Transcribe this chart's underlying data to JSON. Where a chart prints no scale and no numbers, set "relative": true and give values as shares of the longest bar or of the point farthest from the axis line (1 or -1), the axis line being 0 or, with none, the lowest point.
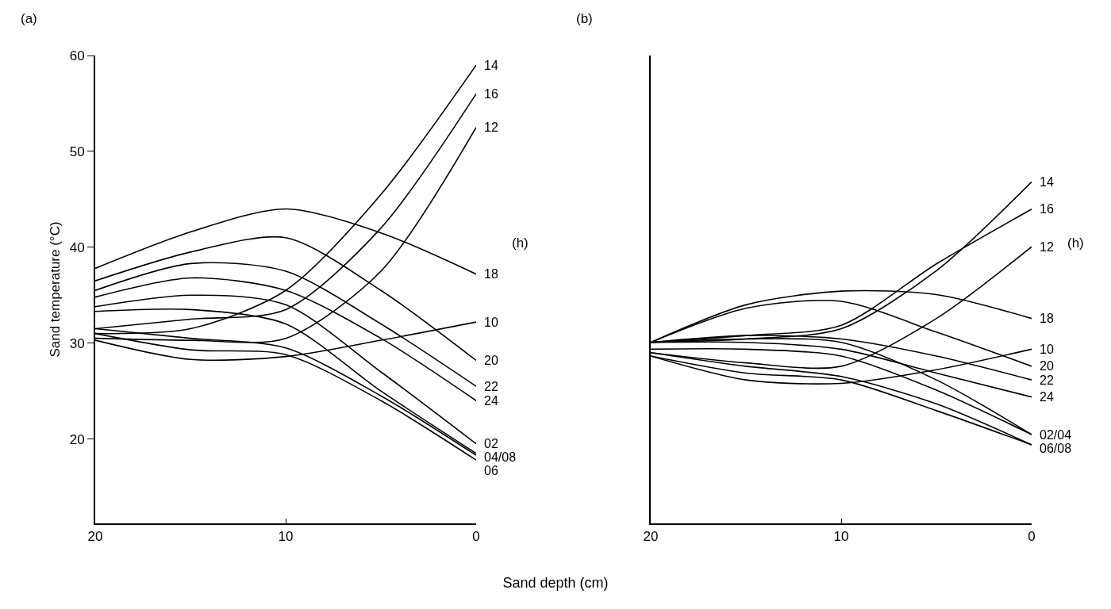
{
  "chart_data": [
    {
      "type": "line",
      "title": "(a)",
      "ylabel": "Sand temperature (°C)",
      "xlabel": "Sand depth (cm)",
      "annotations": [
        "(h)"
      ],
      "x": [
        20,
        15,
        10,
        5,
        0
      ],
      "xlim": [
        20,
        0
      ],
      "xticks": [
        20,
        10,
        0
      ],
      "ylim": [
        11.2,
        60
      ],
      "yticks": [
        20,
        30,
        40,
        50,
        60
      ],
      "legend": false,
      "line_style": "solid",
      "series": [
        {
          "name": "14",
          "color": "#000000",
          "values": [
            31.0,
            31.5,
            35.5,
            45.5,
            59
          ]
        },
        {
          "name": "16",
          "color": "#000000",
          "values": [
            31.5,
            32.5,
            33.5,
            42,
            56
          ]
        },
        {
          "name": "12",
          "color": "#000000",
          "values": [
            30.5,
            30.3,
            30.5,
            37.5,
            52.5
          ]
        },
        {
          "name": "18",
          "color": "#000000",
          "values": [
            37.8,
            41.6,
            44.0,
            41.5,
            37.2
          ]
        },
        {
          "name": "10",
          "color": "#000000",
          "values": [
            30.3,
            28.3,
            28.6,
            30.3,
            32.2
          ]
        },
        {
          "name": "20",
          "color": "#000000",
          "values": [
            36.5,
            39.5,
            41.0,
            35.5,
            28.2
          ]
        },
        {
          "name": "22",
          "color": "#000000",
          "values": [
            35.5,
            38.3,
            37.5,
            32,
            25.5
          ]
        },
        {
          "name": "24",
          "color": "#000000",
          "values": [
            34.8,
            36.8,
            35.5,
            30.5,
            24
          ]
        },
        {
          "name": "02",
          "color": "#000000",
          "values": [
            33.8,
            35.0,
            34,
            27,
            19.5
          ]
        },
        {
          "name": "04/08",
          "color": "#000000",
          "values": [
            33.3,
            33.5,
            32,
            25,
            18.5
          ]
        },
        {
          "color": "#000000",
          "values": [
            31.5,
            30.5,
            29.5,
            24.5,
            18.3
          ]
        },
        {
          "name": "06",
          "color": "#000000",
          "values": [
            31.0,
            29.3,
            28.8,
            24,
            17.8
          ]
        }
      ]
    },
    {
      "type": "line",
      "title": "(b)",
      "annotations": [
        "(h)"
      ],
      "x": [
        20,
        15,
        10,
        5,
        0
      ],
      "xlim": [
        20,
        0
      ],
      "xticks": [
        20,
        10,
        0
      ],
      "relative": true,
      "legend": false,
      "line_style": "solid",
      "series": [
        {
          "name": "14",
          "color": "#000000",
          "values": [
            0.53,
            0.54,
            0.57,
            0.74,
            1
          ]
        },
        {
          "name": "16",
          "color": "#000000",
          "values": [
            0.53,
            0.55,
            0.58,
            0.76,
            0.92
          ]
        },
        {
          "name": "12",
          "color": "#000000",
          "values": [
            0.5,
            0.47,
            0.46,
            0.6,
            0.81
          ]
        },
        {
          "name": "18",
          "color": "#000000",
          "values": [
            0.53,
            0.64,
            0.68,
            0.67,
            0.6
          ]
        },
        {
          "name": "10",
          "color": "#000000",
          "values": [
            0.49,
            0.42,
            0.41,
            0.45,
            0.51
          ]
        },
        {
          "name": "20",
          "color": "#000000",
          "values": [
            0.53,
            0.63,
            0.65,
            0.56,
            0.46
          ]
        },
        {
          "name": "22",
          "color": "#000000",
          "values": [
            0.53,
            0.55,
            0.54,
            0.49,
            0.42
          ]
        },
        {
          "name": "24",
          "color": "#000000",
          "values": [
            0.53,
            0.53,
            0.51,
            0.44,
            0.37
          ]
        },
        {
          "name": "02/04",
          "color": "#000000",
          "values": [
            0.53,
            0.54,
            0.53,
            0.42,
            0.26
          ]
        },
        {
          "color": "#000000",
          "values": [
            0.51,
            0.51,
            0.49,
            0.39,
            0.26
          ]
        },
        {
          "name": "06/08",
          "color": "#000000",
          "values": [
            0.5,
            0.46,
            0.43,
            0.35,
            0.23
          ]
        },
        {
          "color": "#000000",
          "values": [
            0.49,
            0.44,
            0.42,
            0.33,
            0.23
          ]
        }
      ]
    }
  ]
}
